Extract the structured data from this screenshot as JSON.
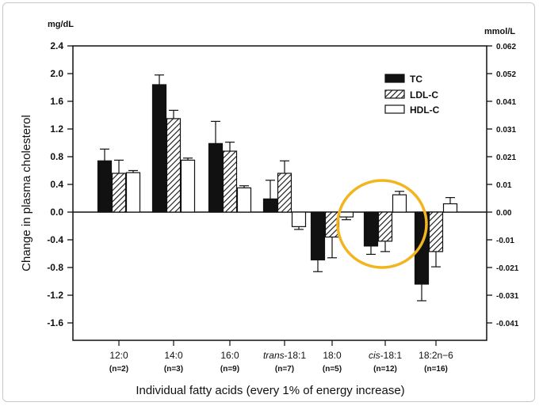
{
  "chart_data": {
    "type": "bar",
    "xlabel": "Individual fatty acids (every 1% of energy increase)",
    "ylabel": "Change in plasma cholesterol",
    "y_unit_left": "mg/dL",
    "y_unit_right": "mmol/L",
    "ylim": [
      -1.9,
      2.4
    ],
    "yticks": [
      "2.4",
      "2.0",
      "1.6",
      "1.2",
      "0.8",
      "0.4",
      "0.0",
      "-0.4",
      "-0.8",
      "-1.2",
      "-1.6"
    ],
    "yticks_right": [
      "0.062",
      "0.052",
      "0.041",
      "0.031",
      "0.021",
      "0.01",
      "0.00",
      "-0.01",
      "-0.021",
      "-0.031",
      "-0.041"
    ],
    "categories": [
      {
        "prefix": "",
        "label": "12:0",
        "n": "(n=2)"
      },
      {
        "prefix": "",
        "label": "14:0",
        "n": "(n=3)"
      },
      {
        "prefix": "",
        "label": "16:0",
        "n": "(n=9)"
      },
      {
        "prefix": "trans",
        "label": "-18:1",
        "n": "(n=7)"
      },
      {
        "prefix": "",
        "label": "18:0",
        "n": "(n=5)"
      },
      {
        "prefix": "cis",
        "label": "-18:1",
        "n": "(n=12)"
      },
      {
        "prefix": "",
        "label": "18:2n−6",
        "n": "(n=16)"
      }
    ],
    "series": [
      {
        "name": "TC",
        "style": "solid",
        "values": [
          0.74,
          1.84,
          0.99,
          0.19,
          -0.69,
          -0.49,
          -1.04
        ],
        "errors": [
          0.17,
          0.14,
          0.32,
          0.27,
          0.17,
          0.12,
          0.24
        ]
      },
      {
        "name": "LDL-C",
        "style": "hatched",
        "values": [
          0.56,
          1.35,
          0.88,
          0.56,
          -0.36,
          -0.42,
          -0.57
        ],
        "errors": [
          0.19,
          0.12,
          0.13,
          0.18,
          0.3,
          0.15,
          0.22
        ]
      },
      {
        "name": "HDL-C",
        "style": "open",
        "values": [
          0.57,
          0.75,
          0.35,
          -0.21,
          -0.07,
          0.25,
          0.12
        ],
        "errors": [
          0.03,
          0.03,
          0.03,
          0.04,
          0.04,
          0.05,
          0.09
        ]
      }
    ],
    "legend_position": "top-right",
    "grid": false,
    "annotation": "highlight circle around cis-18:1",
    "colors": {
      "highlight": "#f2b51f",
      "bar_fill": "#111111"
    }
  }
}
